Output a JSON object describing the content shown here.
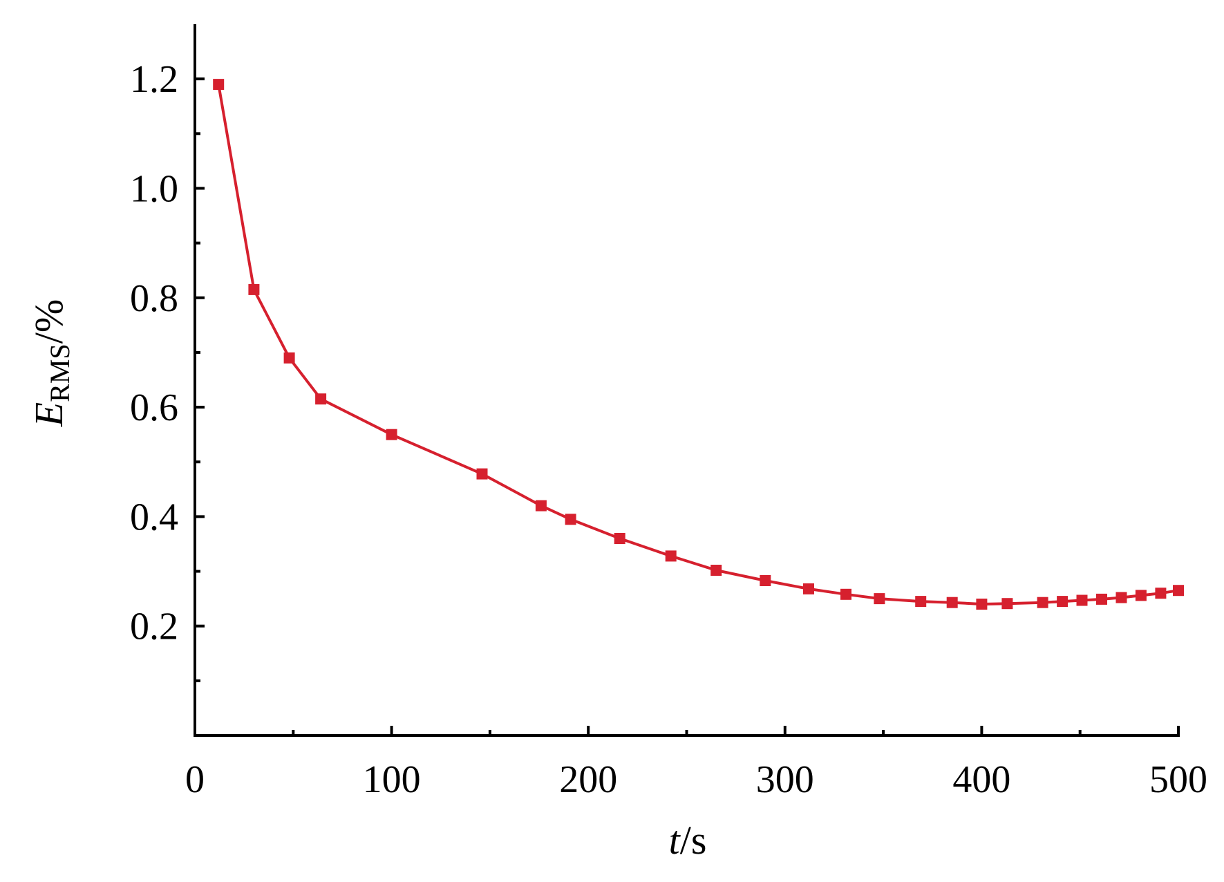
{
  "chart_data": {
    "type": "line",
    "xlabel": {
      "var": "t",
      "unit": "/s"
    },
    "ylabel": {
      "var": "E",
      "sub": "RMS",
      "unit": "/%"
    },
    "xlim": [
      0,
      500
    ],
    "ylim": [
      0.0,
      1.3
    ],
    "x_ticks": [
      0,
      100,
      200,
      300,
      400,
      500
    ],
    "x_tick_labels": [
      "0",
      "100",
      "200",
      "300",
      "400",
      "500"
    ],
    "y_ticks": [
      0.2,
      0.4,
      0.6,
      0.8,
      1.0,
      1.2
    ],
    "y_tick_labels": [
      "0.2",
      "0.4",
      "0.6",
      "0.8",
      "1.0",
      "1.2"
    ],
    "x_minor_ticks": [
      50,
      150,
      250,
      350,
      450
    ],
    "y_minor_ticks": [
      0.1,
      0.3,
      0.5,
      0.7,
      0.9,
      1.1
    ],
    "grid": false,
    "series": [
      {
        "color": "#d6202e",
        "marker": "square",
        "x": [
          12,
          30,
          48,
          64,
          100,
          146,
          176,
          191,
          216,
          242,
          265,
          290,
          312,
          331,
          348,
          369,
          385,
          400,
          413,
          431,
          441,
          451,
          461,
          471,
          481,
          491,
          500
        ],
        "y": [
          1.19,
          0.815,
          0.69,
          0.615,
          0.55,
          0.478,
          0.42,
          0.395,
          0.36,
          0.328,
          0.302,
          0.283,
          0.268,
          0.258,
          0.25,
          0.245,
          0.243,
          0.24,
          0.241,
          0.243,
          0.245,
          0.247,
          0.249,
          0.252,
          0.256,
          0.26,
          0.265
        ]
      }
    ]
  }
}
